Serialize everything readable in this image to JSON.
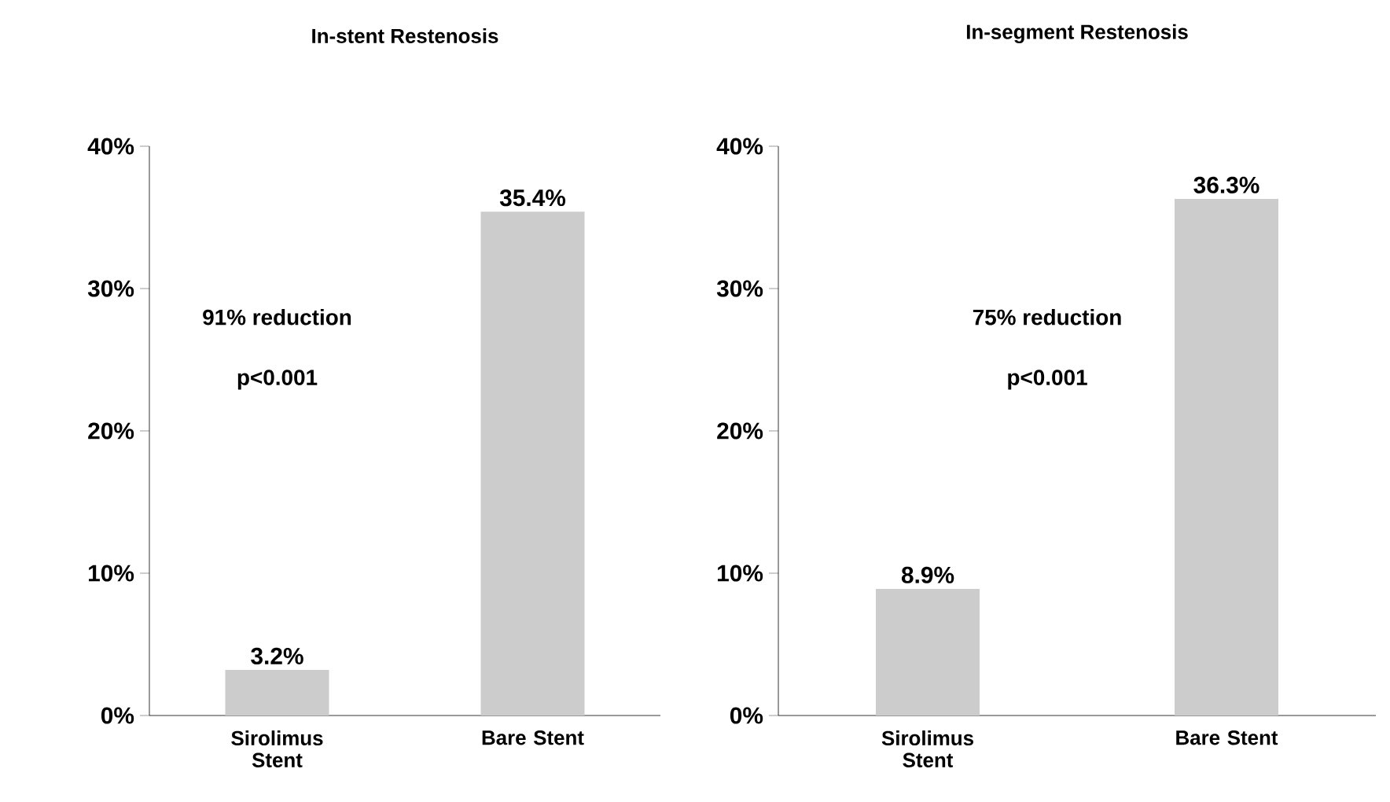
{
  "chart_data": [
    {
      "type": "bar",
      "title": "In-stent Restenosis",
      "categories": [
        "Sirolimus Stent",
        "Bare Stent"
      ],
      "values": [
        3.2,
        35.4
      ],
      "value_labels": [
        "3.2%",
        "35.4%"
      ],
      "color": "#cccccc",
      "ylim": [
        0,
        40
      ],
      "yticks": [
        {
          "value": 0,
          "label": "0%"
        },
        {
          "value": 10,
          "label": "10%"
        },
        {
          "value": 20,
          "label": "20%"
        },
        {
          "value": 30,
          "label": "30%"
        },
        {
          "value": 40,
          "label": "40%"
        }
      ],
      "annotations": [
        "91% reduction",
        "p<0.001"
      ]
    },
    {
      "type": "bar",
      "title": "In-segment Restenosis",
      "categories": [
        "Sirolimus Stent",
        "Bare Stent"
      ],
      "values": [
        8.9,
        36.3
      ],
      "value_labels": [
        "8.9%",
        "36.3%"
      ],
      "color": "#cccccc",
      "ylim": [
        0,
        40
      ],
      "yticks": [
        {
          "value": 0,
          "label": "0%"
        },
        {
          "value": 10,
          "label": "10%"
        },
        {
          "value": 20,
          "label": "20%"
        },
        {
          "value": 30,
          "label": "30%"
        },
        {
          "value": 40,
          "label": "40%"
        }
      ],
      "annotations": [
        "75% reduction",
        "p<0.001"
      ]
    }
  ]
}
